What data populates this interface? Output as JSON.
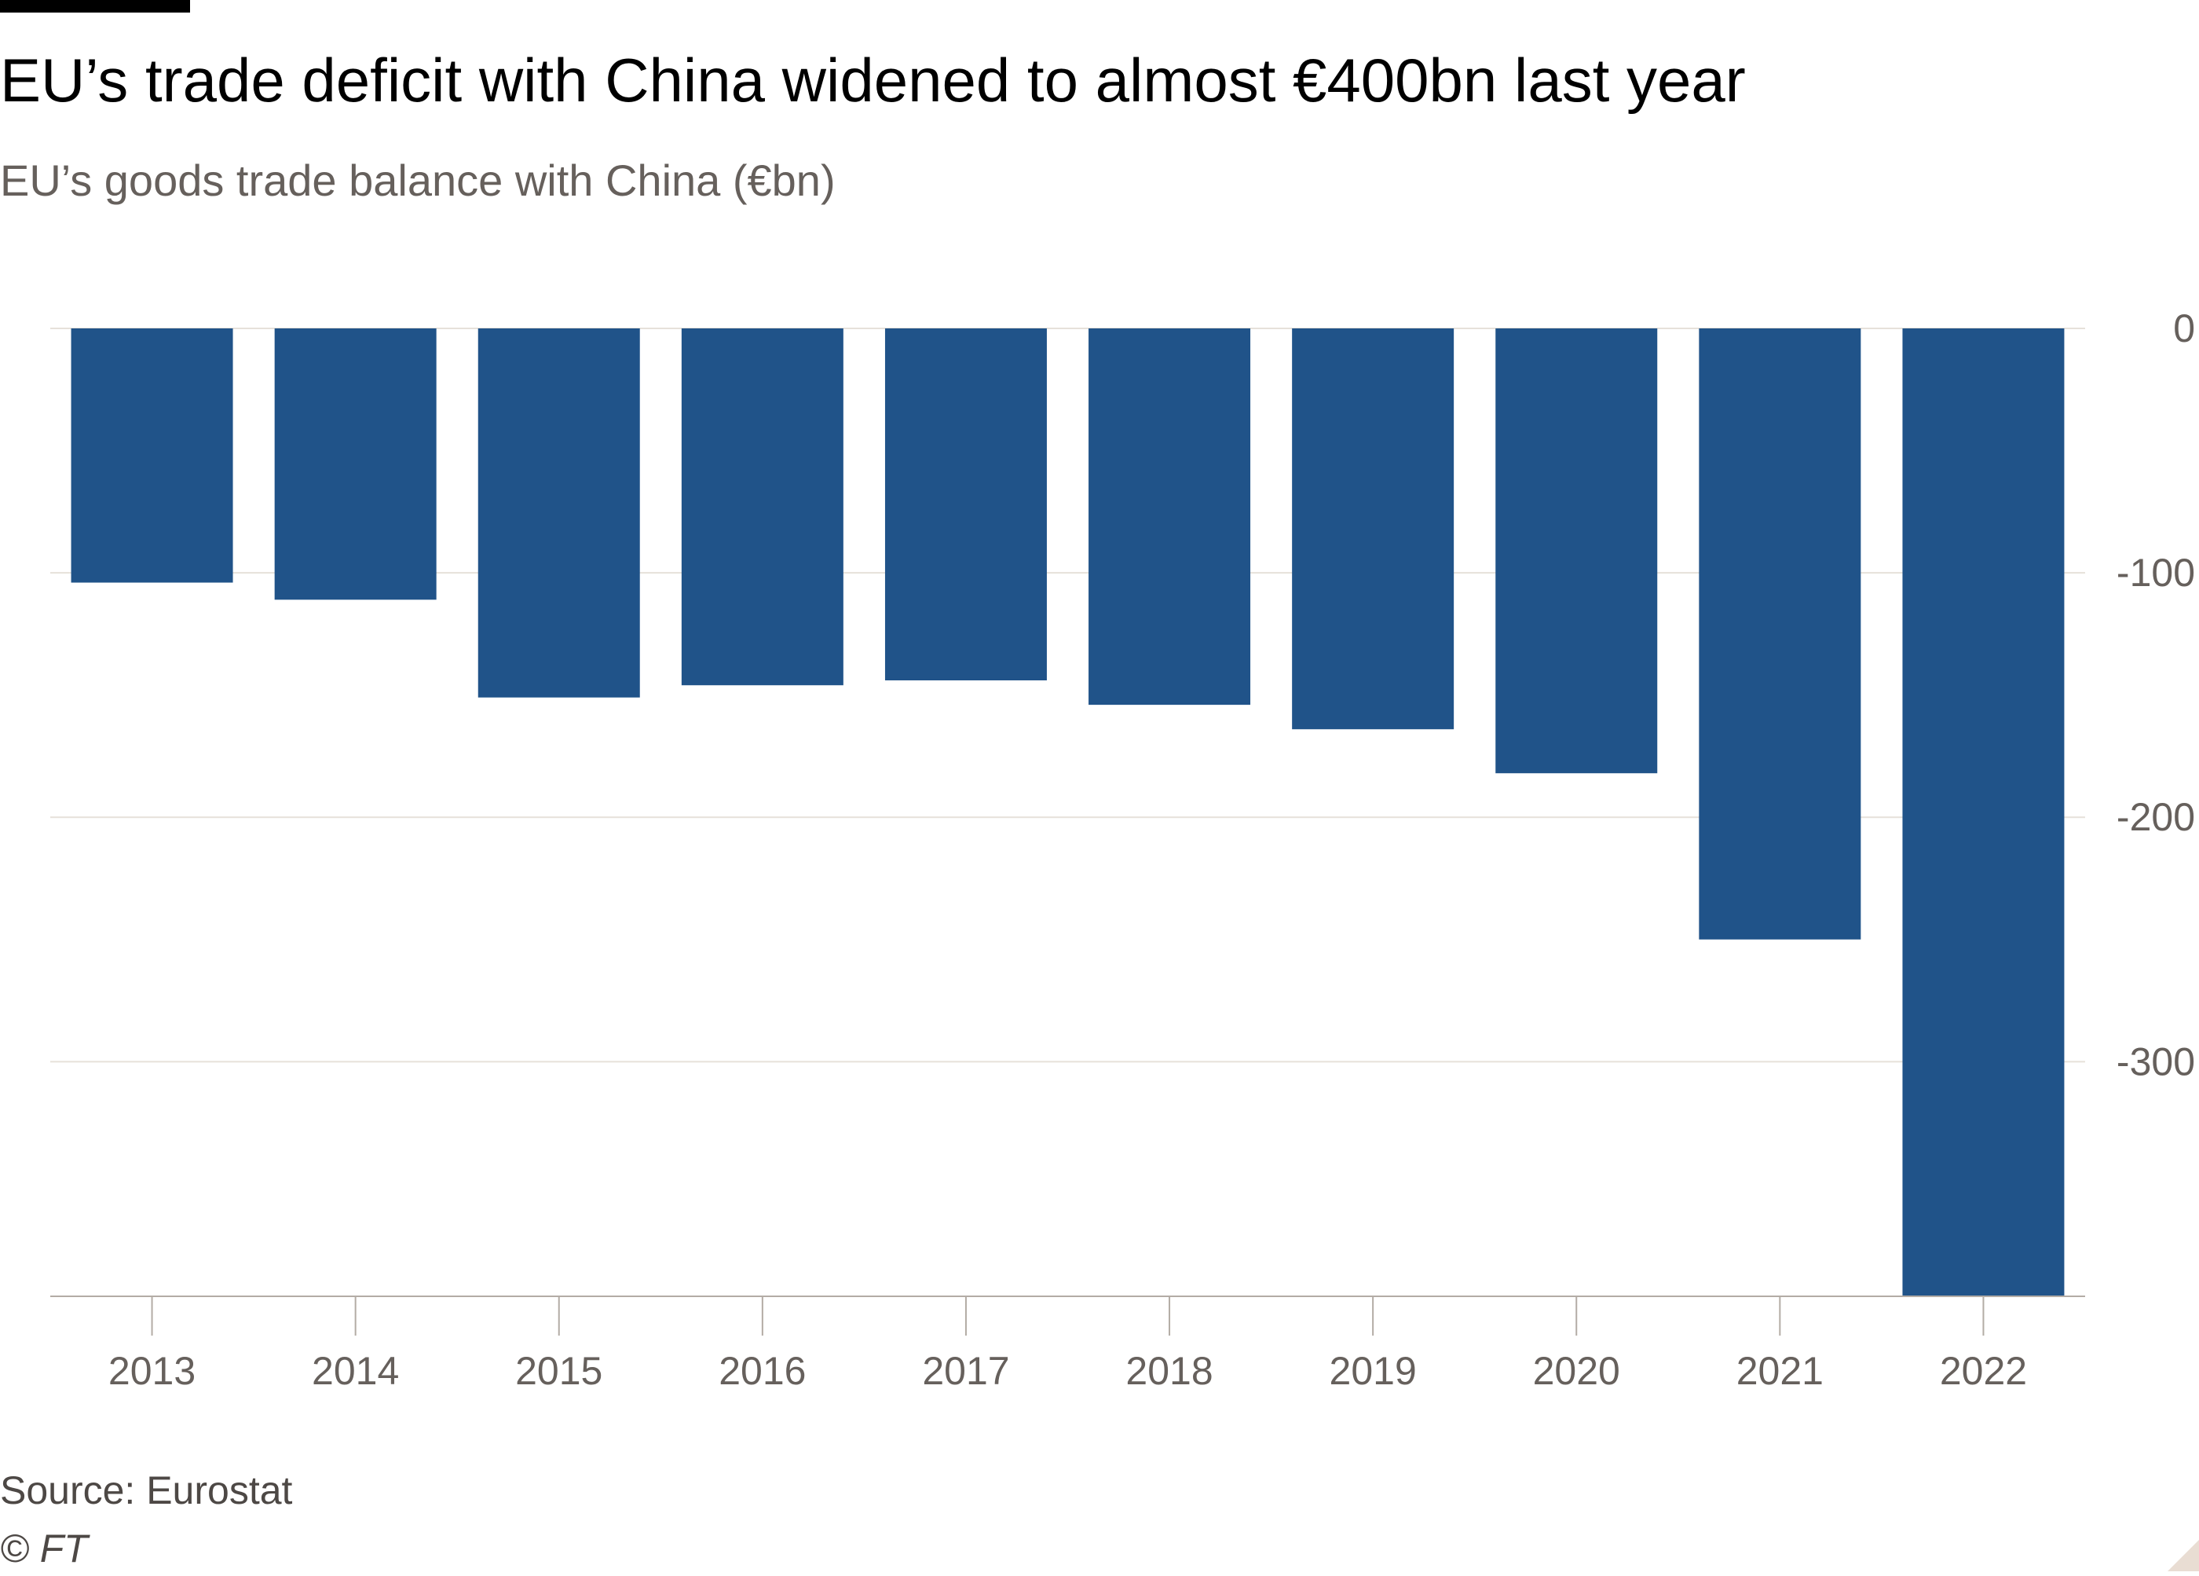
{
  "colors": {
    "bar": "#205389",
    "grid": "#e6e1da",
    "axis": "#b3aca5",
    "tick_text": "#66605c",
    "corner_mark": "#e9ddd3"
  },
  "title": "EU’s trade deficit with China widened to almost €400bn last year",
  "subtitle": "EU’s goods trade balance with China (€bn)",
  "source": "Source: Eurostat",
  "copyright": "© FT",
  "chart_data": {
    "type": "bar",
    "title": "EU’s trade deficit with China widened to almost €400bn last year",
    "subtitle": "EU’s goods trade balance with China (€bn)",
    "xlabel": "",
    "ylabel": "",
    "y_axis_position": "right",
    "grid": true,
    "legend": "none",
    "categories": [
      "2013",
      "2014",
      "2015",
      "2016",
      "2017",
      "2018",
      "2019",
      "2020",
      "2021",
      "2022"
    ],
    "values": [
      -104,
      -111,
      -151,
      -146,
      -144,
      -154,
      -164,
      -182,
      -250,
      -396
    ],
    "ylim": [
      -396,
      0
    ],
    "yticks": [
      0,
      -100,
      -200,
      -300
    ],
    "ytick_labels": [
      "0",
      "-100",
      "-200",
      "-300"
    ]
  }
}
